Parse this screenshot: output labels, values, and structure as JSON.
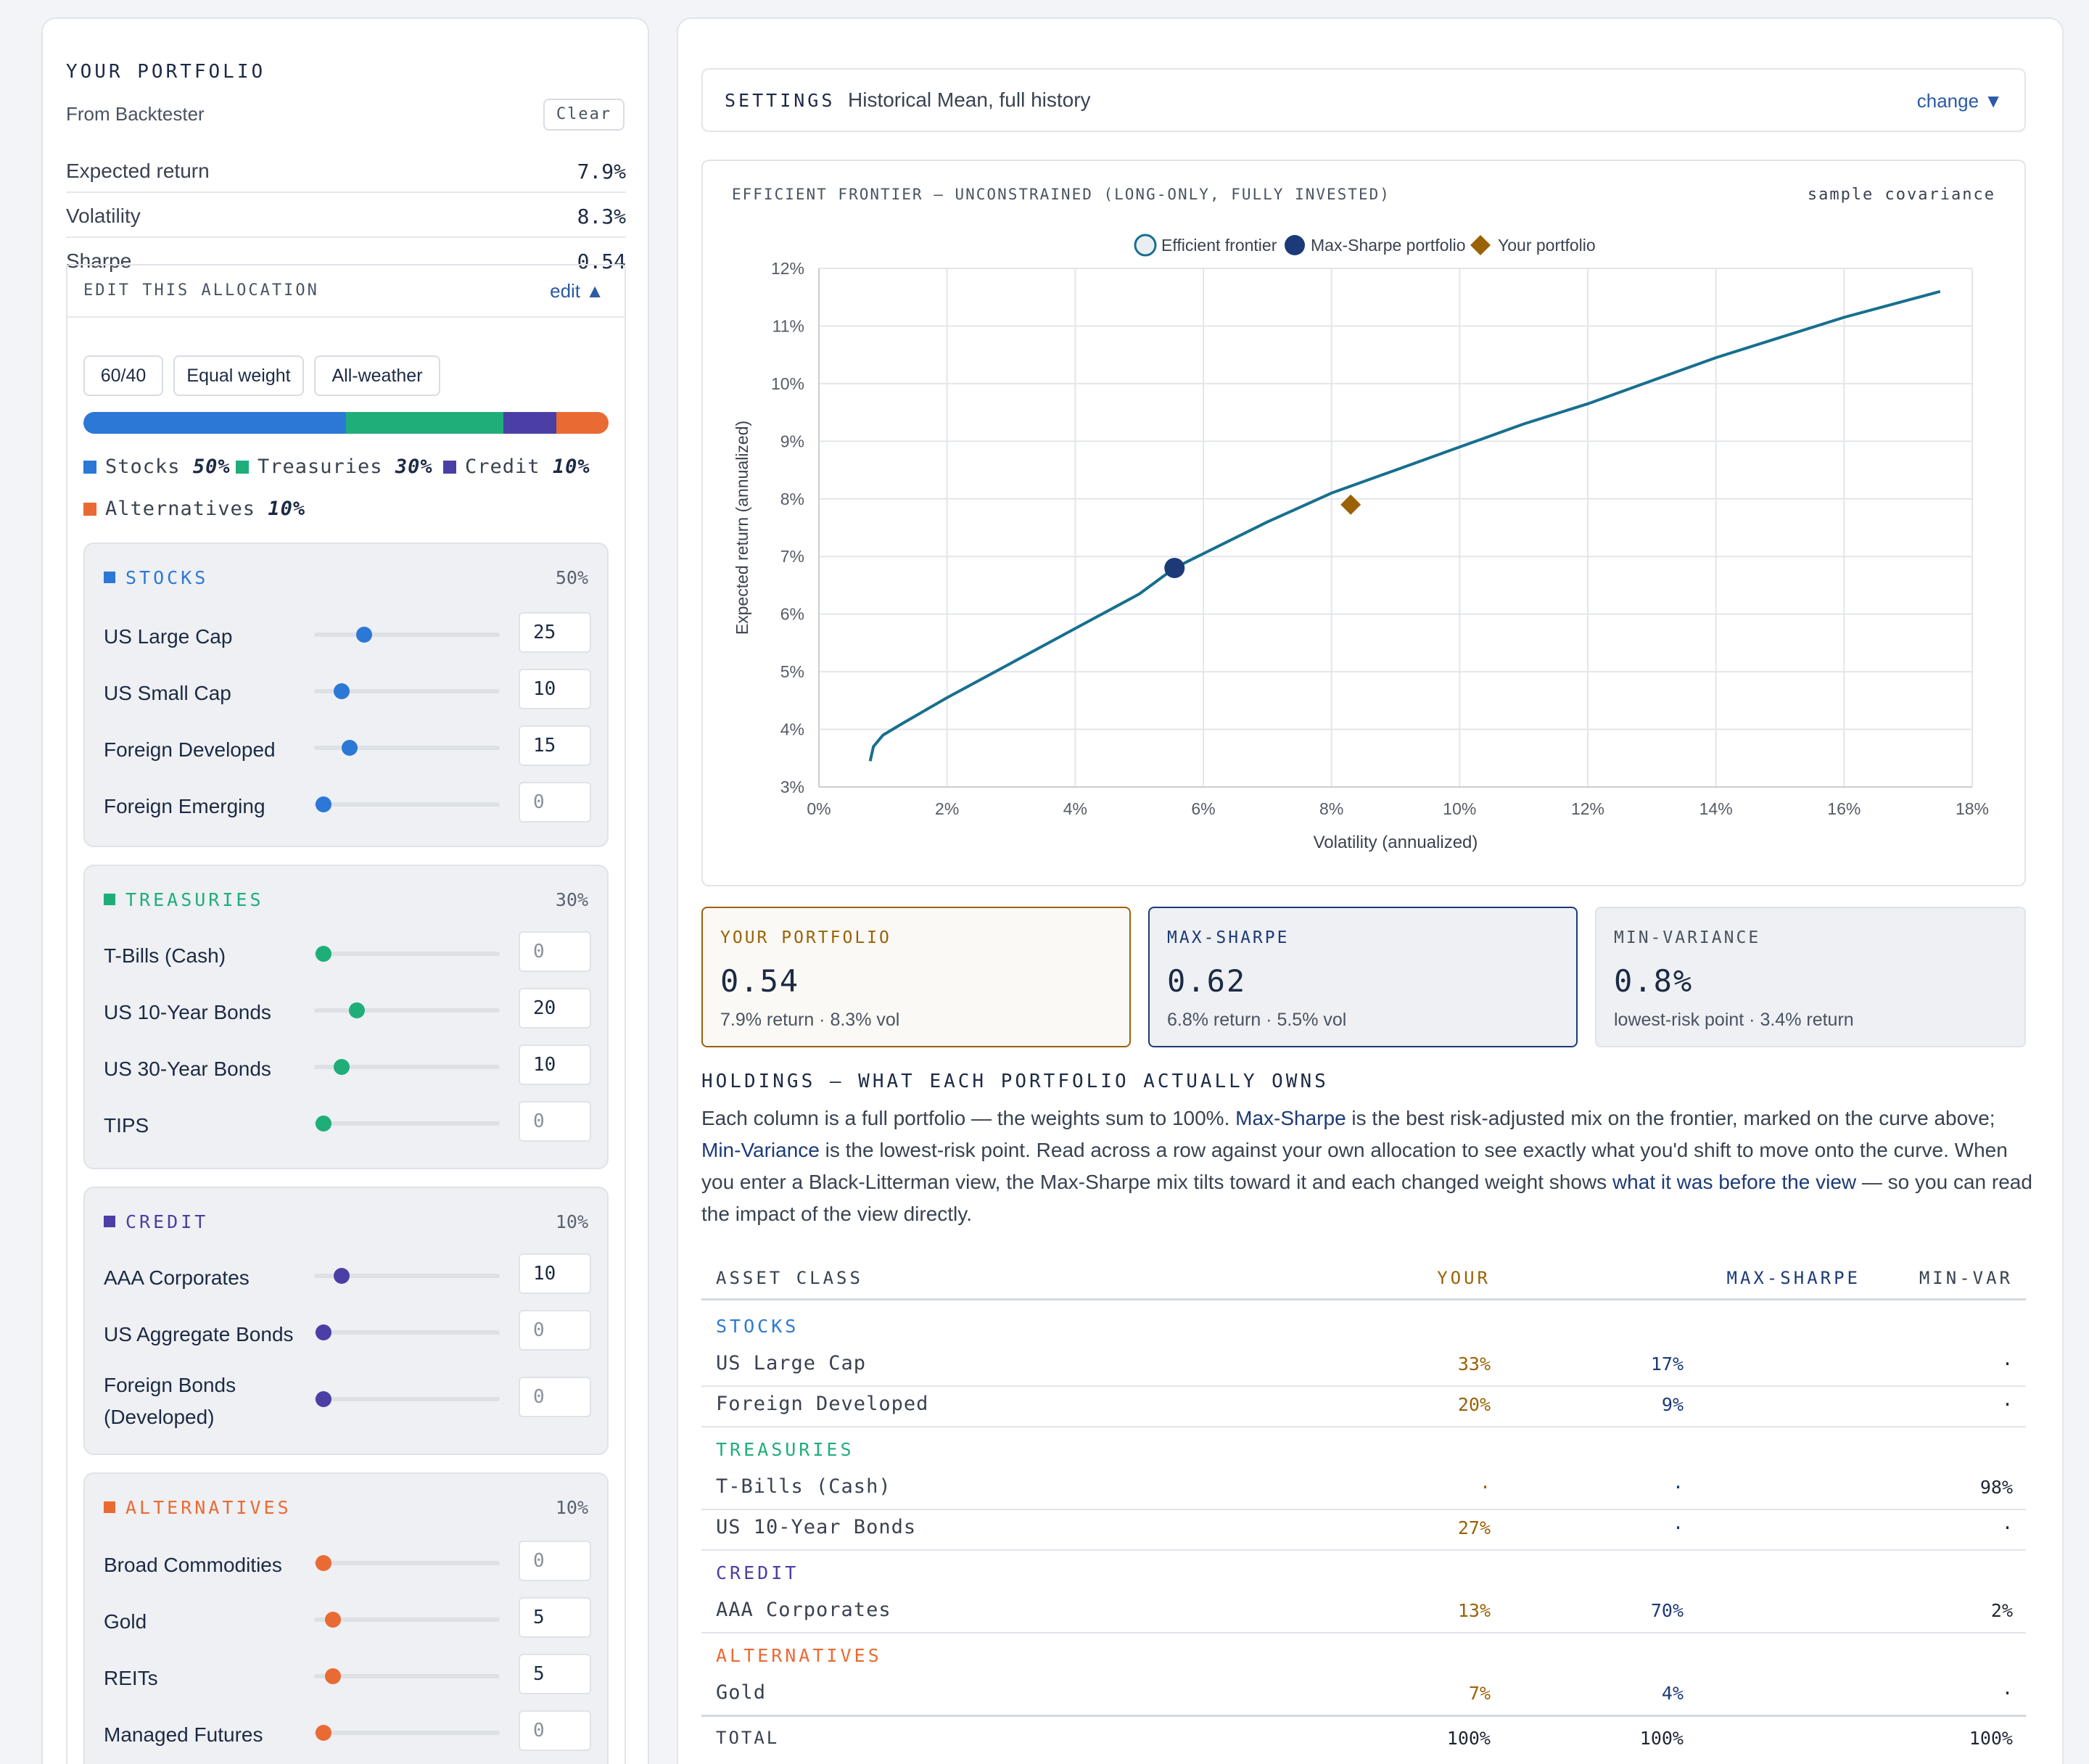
{
  "portfolio": {
    "title": "YOUR PORTFOLIO",
    "source": "From Backtester",
    "clear_label": "Clear",
    "metrics": [
      {
        "label": "Expected return",
        "value": "7.9%"
      },
      {
        "label": "Volatility",
        "value": "8.3%"
      },
      {
        "label": "Sharpe",
        "value": "0.54"
      }
    ]
  },
  "edit": {
    "title": "EDIT THIS ALLOCATION",
    "toggle_label": "edit ▲",
    "presets": [
      "60/40",
      "Equal weight",
      "All-weather"
    ],
    "legend": [
      {
        "name": "Stocks",
        "pct": "50%"
      },
      {
        "name": "Treasuries",
        "pct": "30%"
      },
      {
        "name": "Credit",
        "pct": "10%"
      },
      {
        "name": "Alternatives",
        "pct": "10%"
      }
    ],
    "groups": [
      {
        "name": "STOCKS",
        "pct": "50%",
        "items": [
          {
            "name": "US Large Cap",
            "value": "25"
          },
          {
            "name": "US Small Cap",
            "value": "10"
          },
          {
            "name": "Foreign Developed",
            "value": "15"
          },
          {
            "name": "Foreign Emerging",
            "value": "0"
          }
        ]
      },
      {
        "name": "TREASURIES",
        "pct": "30%",
        "items": [
          {
            "name": "T-Bills (Cash)",
            "value": "0"
          },
          {
            "name": "US 10-Year Bonds",
            "value": "20"
          },
          {
            "name": "US 30-Year Bonds",
            "value": "10"
          },
          {
            "name": "TIPS",
            "value": "0"
          }
        ]
      },
      {
        "name": "CREDIT",
        "pct": "10%",
        "items": [
          {
            "name": "AAA Corporates",
            "value": "10"
          },
          {
            "name": "US Aggregate Bonds",
            "value": "0"
          },
          {
            "name": "Foreign Bonds (Developed)",
            "value": "0"
          }
        ]
      },
      {
        "name": "ALTERNATIVES",
        "pct": "10%",
        "items": [
          {
            "name": "Broad Commodities",
            "value": "0"
          },
          {
            "name": "Gold",
            "value": "5"
          },
          {
            "name": "REITs",
            "value": "5"
          },
          {
            "name": "Managed Futures",
            "value": "0"
          }
        ]
      }
    ]
  },
  "colors": {
    "stocks": "#2b78d6",
    "treasuries": "#1fae7a",
    "credit": "#4b3fa6",
    "alternatives": "#ea6a33",
    "your": "#9a6207",
    "maxsharpe": "#1c3a78",
    "frontier": "#186f8f"
  },
  "settings": {
    "label": "SETTINGS",
    "value": "Historical Mean, full history",
    "change_label": "change ▼"
  },
  "chart_data": {
    "type": "line",
    "title": "EFFICIENT FRONTIER — UNCONSTRAINED (LONG-ONLY, FULLY INVESTED)",
    "subtitle": "sample covariance",
    "xlabel": "Volatility (annualized)",
    "ylabel": "Expected return (annualized)",
    "xlim": [
      0,
      18
    ],
    "ylim": [
      3,
      12
    ],
    "xticks": [
      "0%",
      "2%",
      "4%",
      "6%",
      "8%",
      "10%",
      "12%",
      "14%",
      "16%",
      "18%"
    ],
    "yticks": [
      "3%",
      "4%",
      "5%",
      "6%",
      "7%",
      "8%",
      "9%",
      "10%",
      "11%",
      "12%"
    ],
    "grid": true,
    "legend_position": "top-center",
    "legend": [
      "Efficient frontier",
      "Max-Sharpe portfolio",
      "Your portfolio"
    ],
    "series": [
      {
        "name": "Efficient frontier",
        "x": [
          0.8,
          0.85,
          1.0,
          1.3,
          2.0,
          3.0,
          4.0,
          5.0,
          5.55,
          6.0,
          7.0,
          8.0,
          9.0,
          10.0,
          11.0,
          12.0,
          13.0,
          14.0,
          15.0,
          16.0,
          17.0,
          17.5
        ],
        "y": [
          3.45,
          3.7,
          3.9,
          4.1,
          4.55,
          5.15,
          5.75,
          6.35,
          6.8,
          7.05,
          7.6,
          8.1,
          8.5,
          8.9,
          9.3,
          9.65,
          10.05,
          10.45,
          10.8,
          11.15,
          11.45,
          11.6
        ]
      }
    ],
    "points": [
      {
        "name": "Max-Sharpe portfolio",
        "x": 5.55,
        "y": 6.8
      },
      {
        "name": "Your portfolio",
        "x": 8.3,
        "y": 7.9
      }
    ]
  },
  "stats": [
    {
      "label": "YOUR PORTFOLIO",
      "value": "0.54",
      "sub": "7.9% return · 8.3% vol"
    },
    {
      "label": "MAX-SHARPE",
      "value": "0.62",
      "sub": "6.8% return · 5.5% vol"
    },
    {
      "label": "MIN-VARIANCE",
      "value": "0.8%",
      "sub": "lowest-risk point · 3.4% return"
    }
  ],
  "holdings": {
    "title": "HOLDINGS — WHAT EACH PORTFOLIO ACTUALLY OWNS",
    "desc_1": "Each column is a full portfolio — the weights sum to 100%. ",
    "desc_2": "Max-Sharpe",
    "desc_3": " is the best risk-adjusted mix on the frontier, marked on the curve above; ",
    "desc_4": "Min-Variance",
    "desc_5": " is the lowest-risk point. Read across a row against your own allocation to see exactly what you'd shift to move onto the curve. When you enter a Black-Litterman view, the Max-Sharpe mix tilts toward it and each changed weight shows ",
    "desc_6": "what it was before the view",
    "desc_7": " — so you can read the impact of the view directly.",
    "columns": [
      "ASSET CLASS",
      "YOUR",
      "MAX-SHARPE",
      "MIN-VAR"
    ],
    "groups": [
      {
        "name": "STOCKS",
        "rows": [
          {
            "name": "US Large Cap",
            "your": "33%",
            "max": "17%",
            "min": "·"
          },
          {
            "name": "Foreign Developed",
            "your": "20%",
            "max": "9%",
            "min": "·"
          }
        ]
      },
      {
        "name": "TREASURIES",
        "rows": [
          {
            "name": "T-Bills (Cash)",
            "your": "·",
            "max": "·",
            "min": "98%"
          },
          {
            "name": "US 10-Year Bonds",
            "your": "27%",
            "max": "·",
            "min": "·"
          }
        ]
      },
      {
        "name": "CREDIT",
        "rows": [
          {
            "name": "AAA Corporates",
            "your": "13%",
            "max": "70%",
            "min": "2%"
          }
        ]
      },
      {
        "name": "ALTERNATIVES",
        "rows": [
          {
            "name": "Gold",
            "your": "7%",
            "max": "4%",
            "min": "·"
          }
        ]
      }
    ],
    "total": {
      "name": "TOTAL",
      "your": "100%",
      "max": "100%",
      "min": "100%"
    }
  }
}
